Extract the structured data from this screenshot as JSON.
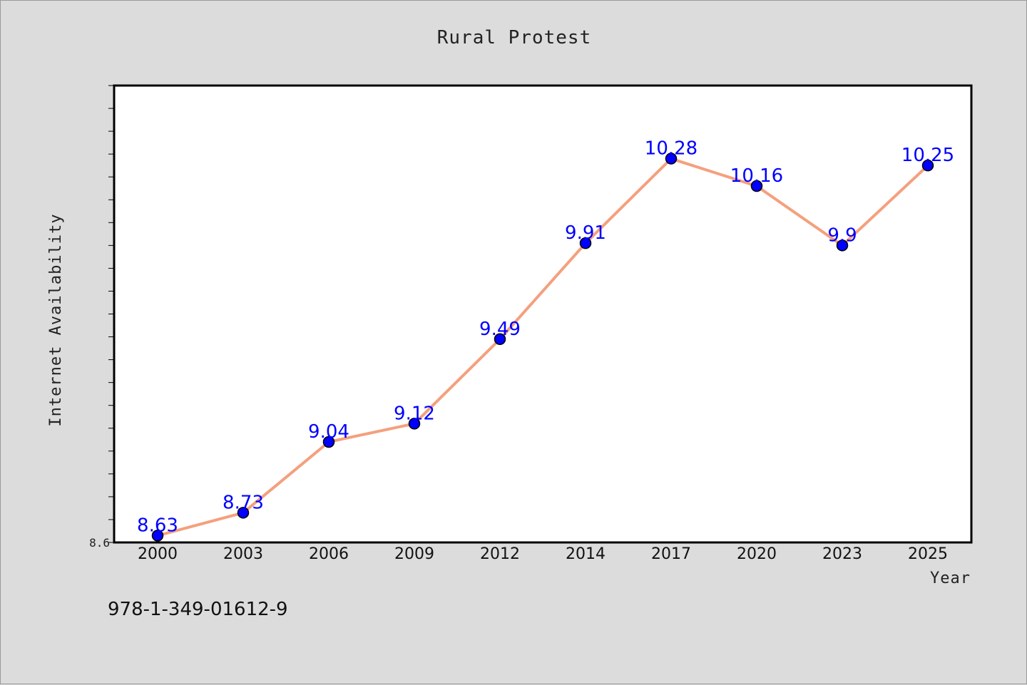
{
  "chart_data": {
    "type": "line",
    "title": "Rural Protest",
    "xlabel": "Year",
    "ylabel": "Internet Availability",
    "categories": [
      "2000",
      "2003",
      "2006",
      "2009",
      "2012",
      "2014",
      "2017",
      "2020",
      "2023",
      "2025"
    ],
    "series": [
      {
        "values": [
          8.63,
          8.73,
          9.04,
          9.12,
          9.49,
          9.91,
          10.28,
          10.16,
          9.9,
          10.25
        ],
        "line_color": "#f4a07e",
        "marker_color": "#0000ff",
        "label_color": "#0000ff"
      }
    ],
    "data_labels": [
      "8.63",
      "8.73",
      "9.04",
      "9.12",
      "9.49",
      "9.91",
      "10.28",
      "10.16",
      "9.9",
      "10.25"
    ],
    "ylim": [
      8.6,
      10.6
    ],
    "yticks_labeled": [
      "8.6"
    ],
    "grid": false,
    "legend": "none"
  },
  "footer": {
    "code": "978-1-349-01612-9"
  },
  "colors": {
    "background": "#dcdcdc",
    "plot_background": "#ffffff",
    "axis": "#000000"
  }
}
